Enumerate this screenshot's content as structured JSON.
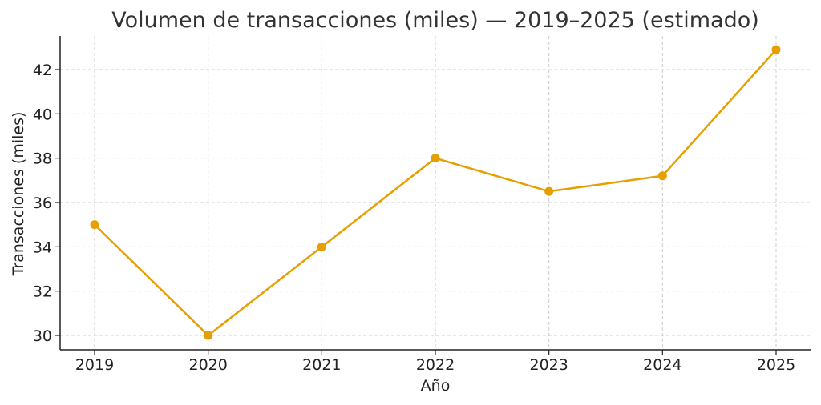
{
  "chart_data": {
    "type": "line",
    "title": "Volumen de transacciones (miles) — 2019–2025 (estimado)",
    "xlabel": "Año",
    "ylabel": "Transacciones (miles)",
    "categories": [
      "2019",
      "2020",
      "2021",
      "2022",
      "2023",
      "2024",
      "2025"
    ],
    "series": [
      {
        "name": "Transacciones (miles)",
        "values": [
          35.0,
          30.0,
          34.0,
          38.0,
          36.5,
          37.2,
          42.9
        ],
        "color": "#E69F00",
        "marker": "circle"
      }
    ],
    "yticks": [
      30,
      32,
      34,
      36,
      38,
      40,
      42
    ],
    "ylim": [
      29.6,
      43.5
    ],
    "grid": true,
    "legend": null
  }
}
